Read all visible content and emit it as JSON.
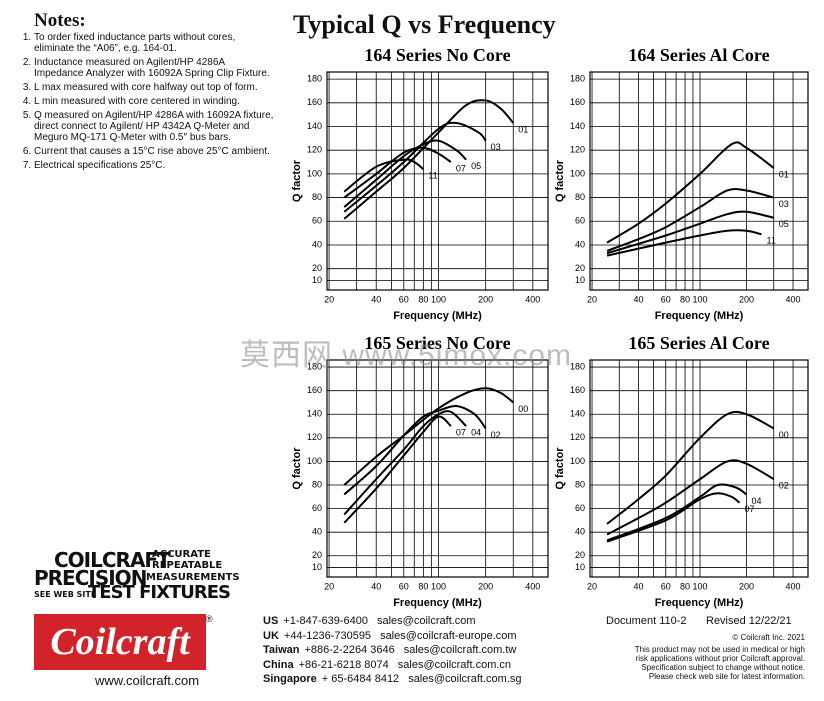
{
  "notes": {
    "title": "Notes:",
    "items": [
      "To order fixed inductance parts without cores, eliminate the “A06”, e.g. 164-01.",
      "Inductance measured on Agilent/HP 4286A Impedance Analyzer with 16092A Spring Clip Fixture.",
      "L max measured with core halfway out top of form.",
      "L min measured with core centered in winding.",
      "Q measured on Agilent/HP 4286A with 16092A fixture, direct connect to Agilent/ HP 4342A Q-Meter and Meguro MQ-171 Q-Meter with 0.5″ bus bars.",
      "Current that causes a 15°C rise above 25°C ambient.",
      "Electrical specifications 25°C."
    ]
  },
  "title": "Typical Q vs Frequency",
  "watermark": "莫西网 www.5imox.com",
  "chart_data": [
    {
      "type": "line",
      "title": "164 Series No Core",
      "x_label": "Frequency (MHz)",
      "y_label": "Q factor",
      "xscale": "log",
      "grid": true,
      "xlim": [
        19.4,
        500
      ],
      "xticks": [
        20,
        40,
        60,
        80,
        100,
        200,
        400
      ],
      "xminor": [
        30,
        50,
        70,
        90,
        300
      ],
      "ylim": [
        2,
        186
      ],
      "yticks": [
        10,
        20,
        40,
        60,
        80,
        100,
        120,
        140,
        160,
        180
      ],
      "series": [
        {
          "name": "01",
          "color": "#000000",
          "x": [
            25,
            40,
            60,
            100,
            150,
            200,
            250,
            300
          ],
          "values": [
            62,
            85,
            105,
            135,
            158,
            162,
            155,
            143
          ]
        },
        {
          "name": "03",
          "color": "#000000",
          "x": [
            25,
            40,
            60,
            100,
            130,
            180,
            200
          ],
          "values": [
            68,
            90,
            110,
            138,
            143,
            135,
            128
          ]
        },
        {
          "name": "05",
          "color": "#000000",
          "x": [
            25,
            40,
            60,
            80,
            100,
            130,
            150
          ],
          "values": [
            72,
            95,
            115,
            125,
            128,
            120,
            112
          ]
        },
        {
          "name": "07",
          "color": "#000000",
          "x": [
            25,
            40,
            60,
            80,
            100,
            120
          ],
          "values": [
            80,
            100,
            118,
            122,
            117,
            110
          ]
        },
        {
          "name": "11",
          "color": "#000000",
          "x": [
            25,
            40,
            60,
            70,
            80
          ],
          "values": [
            85,
            106,
            112,
            110,
            104
          ]
        }
      ]
    },
    {
      "type": "line",
      "title": "164 Series Al Core",
      "x_label": "Frequency (MHz)",
      "y_label": "Q factor",
      "xscale": "log",
      "grid": true,
      "xlim": [
        19.4,
        500
      ],
      "xticks": [
        20,
        40,
        60,
        80,
        100,
        200,
        400
      ],
      "xminor": [
        30,
        50,
        70,
        90,
        300
      ],
      "ylim": [
        2,
        186
      ],
      "yticks": [
        10,
        20,
        40,
        60,
        80,
        100,
        120,
        140,
        160,
        180
      ],
      "series": [
        {
          "name": "01",
          "color": "#000000",
          "x": [
            25,
            40,
            60,
            100,
            160,
            200,
            300
          ],
          "values": [
            42,
            58,
            75,
            100,
            125,
            122,
            105
          ]
        },
        {
          "name": "03",
          "color": "#000000",
          "x": [
            25,
            40,
            60,
            100,
            150,
            200,
            300
          ],
          "values": [
            35,
            45,
            55,
            72,
            86,
            86,
            80
          ]
        },
        {
          "name": "05",
          "color": "#000000",
          "x": [
            25,
            60,
            100,
            150,
            200,
            300
          ],
          "values": [
            33,
            48,
            58,
            66,
            68,
            63
          ]
        },
        {
          "name": "11",
          "color": "#000000",
          "x": [
            25,
            60,
            100,
            150,
            200,
            250
          ],
          "values": [
            31,
            42,
            48,
            52,
            52,
            49
          ]
        }
      ]
    },
    {
      "type": "line",
      "title": "165 Series No Core",
      "x_label": "Frequency (MHz)",
      "y_label": "Q factor",
      "xscale": "log",
      "grid": true,
      "xlim": [
        19.4,
        500
      ],
      "xticks": [
        20,
        40,
        60,
        80,
        100,
        200,
        400
      ],
      "xminor": [
        30,
        50,
        70,
        90,
        300
      ],
      "ylim": [
        2,
        186
      ],
      "yticks": [
        10,
        20,
        40,
        60,
        80,
        100,
        120,
        140,
        160,
        180
      ],
      "series": [
        {
          "name": "00",
          "color": "#000000",
          "x": [
            25,
            40,
            60,
            100,
            150,
            200,
            250,
            300
          ],
          "values": [
            80,
            104,
            122,
            145,
            158,
            162,
            158,
            150
          ]
        },
        {
          "name": "02",
          "color": "#000000",
          "x": [
            25,
            40,
            60,
            80,
            100,
            130,
            170,
            200
          ],
          "values": [
            72,
            96,
            122,
            138,
            143,
            147,
            140,
            128
          ]
        },
        {
          "name": "04",
          "color": "#000000",
          "x": [
            25,
            40,
            60,
            80,
            100,
            120,
            150
          ],
          "values": [
            55,
            85,
            110,
            130,
            140,
            142,
            130
          ]
        },
        {
          "name": "07",
          "color": "#000000",
          "x": [
            25,
            40,
            60,
            80,
            100,
            120
          ],
          "values": [
            48,
            77,
            105,
            125,
            138,
            130
          ]
        }
      ]
    },
    {
      "type": "line",
      "title": "165 Series Al Core",
      "x_label": "Frequency (MHz)",
      "y_label": "Q factor",
      "xscale": "log",
      "grid": true,
      "xlim": [
        19.4,
        500
      ],
      "xticks": [
        20,
        40,
        60,
        80,
        100,
        200,
        400
      ],
      "xminor": [
        30,
        50,
        70,
        90,
        300
      ],
      "ylim": [
        2,
        186
      ],
      "yticks": [
        10,
        20,
        40,
        60,
        80,
        100,
        120,
        140,
        160,
        180
      ],
      "series": [
        {
          "name": "00",
          "color": "#000000",
          "x": [
            25,
            40,
            60,
            100,
            150,
            200,
            300
          ],
          "values": [
            47,
            68,
            88,
            120,
            140,
            140,
            128
          ]
        },
        {
          "name": "02",
          "color": "#000000",
          "x": [
            25,
            40,
            60,
            100,
            150,
            200,
            300
          ],
          "values": [
            38,
            52,
            65,
            85,
            100,
            98,
            85
          ]
        },
        {
          "name": "04",
          "color": "#000000",
          "x": [
            25,
            60,
            100,
            130,
            170,
            200
          ],
          "values": [
            33,
            52,
            70,
            80,
            78,
            72
          ]
        },
        {
          "name": "07",
          "color": "#000000",
          "x": [
            25,
            60,
            100,
            130,
            160,
            180
          ],
          "values": [
            32,
            50,
            68,
            73,
            70,
            65
          ]
        }
      ]
    }
  ],
  "branding": {
    "line1": "COILCRAFT",
    "line1b": "ACCURATE",
    "line1c": "REPEATABLE",
    "line2": "PRECISION",
    "line2b": "MEASUREMENTS",
    "line3a": "SEE WEB SITE",
    "line3b": "TEST FIXTURES",
    "logo": "Coilcraft",
    "registered": "®",
    "website": "www.coilcraft.com"
  },
  "contacts": [
    {
      "region": "US",
      "phone": "+1-847-639-6400",
      "email": "sales@coilcraft.com"
    },
    {
      "region": "UK",
      "phone": "+44-1236-730595",
      "email": "sales@coilcraft-europe.com"
    },
    {
      "region": "Taiwan",
      "phone": "+886-2-2264 3646",
      "email": "sales@coilcraft.com.tw"
    },
    {
      "region": "China",
      "phone": "+86-21-6218 8074",
      "email": "sales@coilcraft.com.cn"
    },
    {
      "region": "Singapore",
      "phone": "+ 65-6484 8412",
      "email": "sales@coilcraft.com.sg"
    }
  ],
  "document": {
    "number": "Document 110-2",
    "revised": "Revised 12/22/21",
    "copyright": "© Coilcraft Inc. 2021",
    "disclaimer": [
      "This product may not be used in medical or high",
      "risk applications without prior Coilcraft approval.",
      "Specification subject to change without notice.",
      "Please check web site for latest information."
    ]
  }
}
